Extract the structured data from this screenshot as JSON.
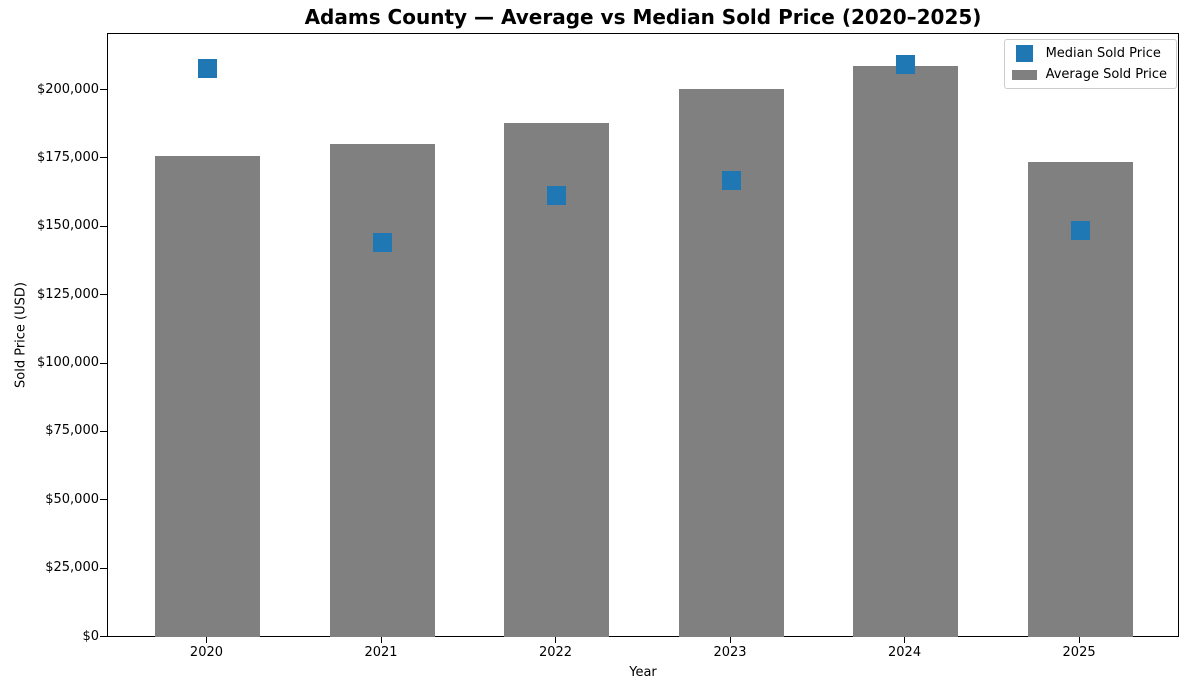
{
  "chart_data": {
    "type": "bar",
    "title": "Adams County — Average vs Median Sold Price (2020–2025)",
    "xlabel": "Year",
    "ylabel": "Sold Price (USD)",
    "categories": [
      "2020",
      "2021",
      "2022",
      "2023",
      "2024",
      "2025"
    ],
    "series": [
      {
        "name": "Median Sold Price",
        "style": "scatter-square",
        "color": "#1f77b4",
        "values": [
          208000,
          144500,
          161500,
          167000,
          209500,
          149000
        ]
      },
      {
        "name": "Average Sold Price",
        "style": "bar",
        "color": "#808080",
        "values": [
          176000,
          180500,
          188000,
          200500,
          209000,
          174000
        ]
      }
    ],
    "ylim": [
      0,
      220700
    ],
    "yticks": [
      0,
      25000,
      50000,
      75000,
      100000,
      125000,
      150000,
      175000,
      200000
    ],
    "ytick_prefix": "$",
    "legend_position": "upper right",
    "grid": false,
    "background_color": "#ffffff",
    "spine_color": "#000000"
  }
}
